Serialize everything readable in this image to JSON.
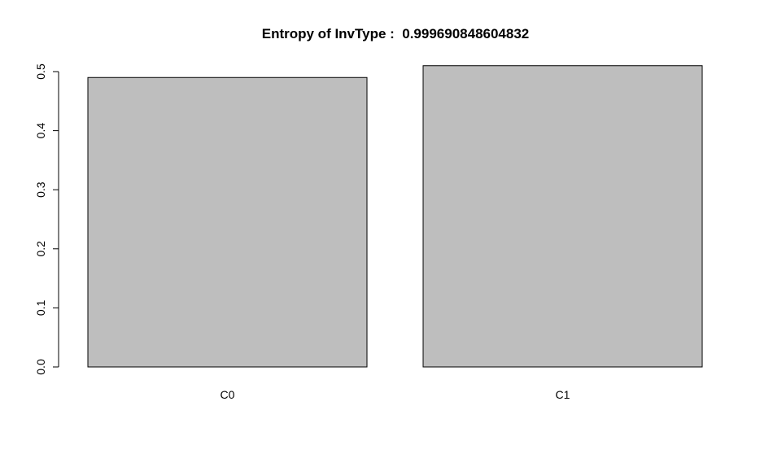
{
  "chart_data": {
    "type": "bar",
    "title": "Entropy of InvType :  0.999690848604832",
    "xlabel": "",
    "ylabel": "",
    "categories": [
      "C0",
      "C1"
    ],
    "values": [
      0.49,
      0.51
    ],
    "ylim": [
      0,
      0.5
    ],
    "yticks": [
      "0.0",
      "0.1",
      "0.2",
      "0.3",
      "0.4",
      "0.5"
    ],
    "grid": false,
    "legend": "none",
    "bar_color": "#bebebe",
    "border_color": "#000000"
  }
}
